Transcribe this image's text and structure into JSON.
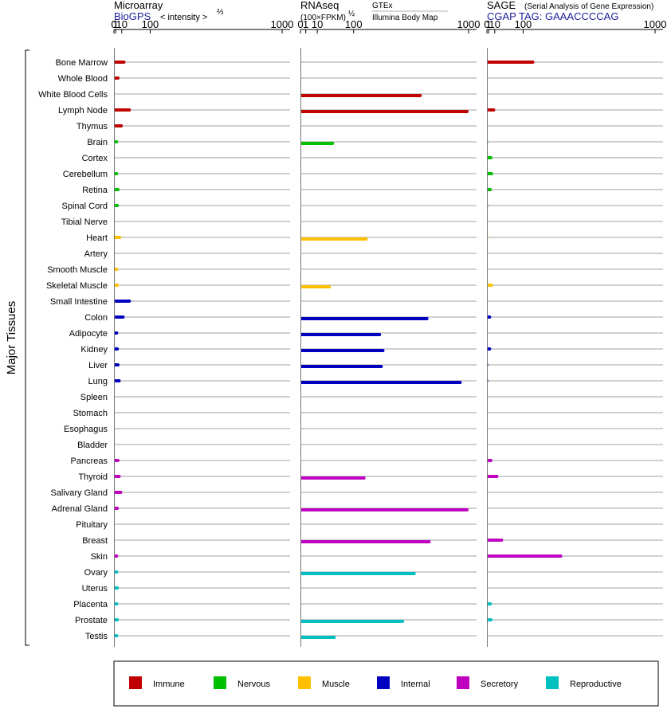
{
  "chart_data": {
    "type": "bar",
    "side_label": "Major Tissues",
    "categories": [
      "Bone Marrow",
      "Whole Blood",
      "White Blood Cells",
      "Lymph Node",
      "Thymus",
      "Brain",
      "Cortex",
      "Cerebellum",
      "Retina",
      "Spinal Cord",
      "Tibial Nerve",
      "Heart",
      "Artery",
      "Smooth Muscle",
      "Skeletal Muscle",
      "Small Intestine",
      "Colon",
      "Adipocyte",
      "Kidney",
      "Liver",
      "Lung",
      "Spleen",
      "Stomach",
      "Esophagus",
      "Bladder",
      "Pancreas",
      "Thyroid",
      "Salivary Gland",
      "Adrenal Gland",
      "Pituitary",
      "Breast",
      "Skin",
      "Ovary",
      "Uterus",
      "Placenta",
      "Prostate",
      "Testis"
    ],
    "groups": [
      "immune",
      "immune",
      "immune",
      "immune",
      "immune",
      "nervous",
      "nervous",
      "nervous",
      "nervous",
      "nervous",
      "nervous",
      "muscle",
      "muscle",
      "muscle",
      "muscle",
      "internal",
      "internal",
      "internal",
      "internal",
      "internal",
      "internal",
      "internal",
      "internal",
      "internal",
      "internal",
      "secretory",
      "secretory",
      "secretory",
      "secretory",
      "secretory",
      "secretory",
      "secretory",
      "reproductive",
      "reproductive",
      "reproductive",
      "reproductive",
      "reproductive"
    ],
    "colors": {
      "immune": "#c00000",
      "nervous": "#00c000",
      "muscle": "#ffc000",
      "internal": "#0000c0",
      "secretory": "#c000c0",
      "reproductive": "#00c0c0"
    },
    "legend": [
      {
        "key": "immune",
        "label": "Immune"
      },
      {
        "key": "nervous",
        "label": "Nervous"
      },
      {
        "key": "muscle",
        "label": "Muscle"
      },
      {
        "key": "internal",
        "label": "Internal"
      },
      {
        "key": "secretory",
        "label": "Secretory"
      },
      {
        "key": "reproductive",
        "label": "Reproductive"
      }
    ],
    "legend_placement": "bottom",
    "panels": [
      {
        "id": "microarray",
        "title": "Microarray",
        "subtitle": "BioGPS",
        "axis_note_prefix": "< intensity >",
        "axis_note_exp": "⅔",
        "scale": "power-2/3",
        "ticks": [
          0,
          1,
          10,
          100,
          1000
        ],
        "xlim": [
          0,
          1000
        ],
        "values": [
          18,
          6,
          null,
          32,
          12,
          4,
          null,
          4,
          6,
          5,
          null,
          9,
          null,
          4,
          5,
          32,
          16,
          4,
          5,
          6,
          8,
          null,
          null,
          null,
          null,
          6,
          8,
          11,
          5,
          null,
          null,
          4,
          4,
          5,
          4,
          5,
          4
        ]
      },
      {
        "id": "rnaseq",
        "title": "RNAseq",
        "subtitle": "(100×FPKM)",
        "subtitle_exp": "½",
        "source_top": "GTEx",
        "source_bottom": "Illumina Body Map",
        "scale": "sqrt",
        "ticks": [
          0,
          1,
          10,
          100,
          1000
        ],
        "xlim": [
          0,
          1000
        ],
        "values": [
          null,
          null,
          520,
          1000,
          null,
          40,
          null,
          null,
          null,
          null,
          null,
          160,
          null,
          null,
          33,
          null,
          580,
          230,
          250,
          240,
          920,
          null,
          null,
          null,
          null,
          null,
          150,
          null,
          1000,
          null,
          600,
          null,
          470,
          null,
          null,
          380,
          44
        ],
        "bars_offset_down": true
      },
      {
        "id": "sage",
        "title": "SAGE",
        "title_note": "(Serial Analysis of Gene Expression)",
        "subtitle": "CGAP TAG: GAAACCCCAG",
        "scale": "power-2/3",
        "ticks": [
          0,
          1,
          10,
          100,
          1000
        ],
        "xlim": [
          0,
          1000
        ],
        "values": [
          150,
          null,
          null,
          11,
          null,
          0.01,
          6,
          7,
          5,
          0.01,
          null,
          0.005,
          null,
          null,
          7,
          null,
          4,
          null,
          4,
          0.01,
          0.01,
          null,
          null,
          null,
          null,
          6,
          18,
          null,
          null,
          null,
          30,
          300,
          null,
          null,
          5,
          6,
          null
        ]
      }
    ]
  }
}
